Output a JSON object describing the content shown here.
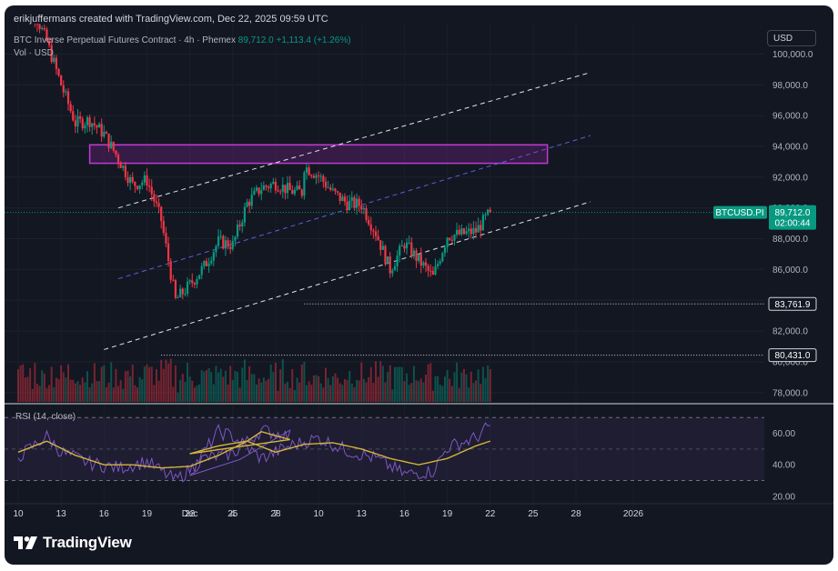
{
  "header": {
    "credit": "erikjuffermans created with TradingView.com, Dec 22, 2025 09:59 UTC",
    "symbol_desc": "BTC Inverse Perpetual Futures Contract · 4h · Phemex",
    "price": "89,712.0",
    "change": "+1,113.4 (+1.26%)",
    "vol_label": "Vol · USD",
    "currency": "USD"
  },
  "brand": {
    "name": "TradingView",
    "logo_icon": "tradingview-logo-icon"
  },
  "rsi_label": "RSI (14, close)",
  "price_tag": {
    "symbol": "BTCUSD.PI",
    "price": "89,712.0",
    "countdown": "02:00:44"
  },
  "level_labels": [
    "83,761.9",
    "80,431.0"
  ],
  "colors": {
    "background": "#131722",
    "up": "#089981",
    "down": "#f23645",
    "zone": "#9c27b0",
    "rsi_line": "#7e57c2",
    "rsi_ma": "#d4b53a"
  },
  "chart_data": [
    {
      "type": "candlestick",
      "title": "BTC Inverse Perpetual Futures Contract",
      "timeframe": "4h",
      "x_ticks": [
        "10",
        "13",
        "16",
        "19",
        "22",
        "25",
        "28",
        "Dec",
        "4",
        "7",
        "10",
        "13",
        "16",
        "19",
        "22",
        "25",
        "28",
        "2026"
      ],
      "y_ticks": [
        "100,000.0",
        "98,000.0",
        "96,000.0",
        "94,000.0",
        "92,000.0",
        "90,000.0",
        "88,000.0",
        "86,000.0",
        "84,000.0",
        "82,000.0",
        "80,000.0",
        "78,000.0"
      ],
      "ylim": [
        77400,
        101500
      ],
      "closes": [
        {
          "date": "Nov 10",
          "close": 105500
        },
        {
          "date": "Nov 11",
          "close": 103000
        },
        {
          "date": "Nov 12",
          "close": 100800
        },
        {
          "date": "Nov 13",
          "close": 98000
        },
        {
          "date": "Nov 14",
          "close": 95500
        },
        {
          "date": "Nov 15",
          "close": 95700
        },
        {
          "date": "Nov 16",
          "close": 94800
        },
        {
          "date": "Nov 17",
          "close": 93200
        },
        {
          "date": "Nov 18",
          "close": 91500
        },
        {
          "date": "Nov 19",
          "close": 91800
        },
        {
          "date": "Nov 20",
          "close": 89200
        },
        {
          "date": "Nov 21",
          "close": 84000
        },
        {
          "date": "Nov 22",
          "close": 85000
        },
        {
          "date": "Nov 23",
          "close": 86200
        },
        {
          "date": "Nov 24",
          "close": 87800
        },
        {
          "date": "Nov 25",
          "close": 87600
        },
        {
          "date": "Nov 26",
          "close": 90300
        },
        {
          "date": "Nov 27",
          "close": 91300
        },
        {
          "date": "Nov 28",
          "close": 91600
        },
        {
          "date": "Nov 29",
          "close": 91100
        },
        {
          "date": "Nov 30",
          "close": 91000
        },
        {
          "date": "Dec 1",
          "close": 86400
        },
        {
          "date": "Dec 2",
          "close": 91400
        },
        {
          "date": "Dec 3",
          "close": 93300
        },
        {
          "date": "Dec 4",
          "close": 92800
        },
        {
          "date": "Dec 5",
          "close": 89300
        },
        {
          "date": "Dec 6",
          "close": 89500
        },
        {
          "date": "Dec 7",
          "close": 89700
        },
        {
          "date": "Dec 8",
          "close": 90900
        },
        {
          "date": "Dec 9",
          "close": 92700
        },
        {
          "date": "Dec 10",
          "close": 92100
        },
        {
          "date": "Dec 11",
          "close": 91000
        },
        {
          "date": "Dec 12",
          "close": 90300
        },
        {
          "date": "Dec 13",
          "close": 90200
        },
        {
          "date": "Dec 14",
          "close": 88400
        },
        {
          "date": "Dec 15",
          "close": 86000
        },
        {
          "date": "Dec 16",
          "close": 87700
        },
        {
          "date": "Dec 17",
          "close": 86600
        },
        {
          "date": "Dec 18",
          "close": 85500
        },
        {
          "date": "Dec 19",
          "close": 88200
        },
        {
          "date": "Dec 20",
          "close": 88300
        },
        {
          "date": "Dec 21",
          "close": 88500
        },
        {
          "date": "Dec 22",
          "close": 89712
        }
      ],
      "resistance_zone": [
        92900,
        94100
      ],
      "horizontal_levels": [
        83761.9,
        80431.0
      ],
      "last_price": 89712.0
    },
    {
      "type": "line",
      "title": "RSI (14, close)",
      "y_ticks": [
        "60.00",
        "40.00",
        "20.00"
      ],
      "ylim": [
        17,
        73
      ],
      "bands": [
        70,
        50,
        30
      ],
      "series": [
        {
          "name": "RSI",
          "color": "#7e57c2",
          "values": [
            {
              "date": "Nov 10",
              "value": 45
            },
            {
              "date": "Nov 12",
              "value": 58
            },
            {
              "date": "Nov 13",
              "value": 48
            },
            {
              "date": "Nov 15",
              "value": 41
            },
            {
              "date": "Nov 17",
              "value": 38
            },
            {
              "date": "Nov 19",
              "value": 42
            },
            {
              "date": "Nov 21",
              "value": 30
            },
            {
              "date": "Nov 23",
              "value": 44
            },
            {
              "date": "Nov 25",
              "value": 47
            },
            {
              "date": "Nov 27",
              "value": 62
            },
            {
              "date": "Nov 29",
              "value": 58
            },
            {
              "date": "Dec 1",
              "value": 35
            },
            {
              "date": "Dec 3",
              "value": 61
            },
            {
              "date": "Dec 4",
              "value": 58
            },
            {
              "date": "Dec 6",
              "value": 44
            },
            {
              "date": "Dec 8",
              "value": 52
            },
            {
              "date": "Dec 10",
              "value": 57
            },
            {
              "date": "Dec 12",
              "value": 49
            },
            {
              "date": "Dec 14",
              "value": 44
            },
            {
              "date": "Dec 16",
              "value": 34
            },
            {
              "date": "Dec 18",
              "value": 36
            },
            {
              "date": "Dec 19",
              "value": 51
            },
            {
              "date": "Dec 21",
              "value": 57
            },
            {
              "date": "Dec 22",
              "value": 65
            }
          ]
        },
        {
          "name": "RSI-based MA",
          "color": "#d4b53a",
          "values": [
            {
              "date": "Nov 10",
              "value": 48
            },
            {
              "date": "Nov 12",
              "value": 55
            },
            {
              "date": "Nov 14",
              "value": 46
            },
            {
              "date": "Nov 16",
              "value": 40
            },
            {
              "date": "Nov 18",
              "value": 40
            },
            {
              "date": "Nov 20",
              "value": 38
            },
            {
              "date": "Nov 22",
              "value": 39
            },
            {
              "date": "Nov 24",
              "value": 46
            },
            {
              "date": "Nov 26",
              "value": 55
            },
            {
              "date": "Nov 27",
              "value": 61
            },
            {
              "date": "Nov 29",
              "value": 56
            },
            {
              "date": "Dec 1",
              "value": 47
            },
            {
              "date": "Dec 3",
              "value": 52
            },
            {
              "date": "Dec 5",
              "value": 55
            },
            {
              "date": "Dec 7",
              "value": 48
            },
            {
              "date": "Dec 9",
              "value": 53
            },
            {
              "date": "Dec 11",
              "value": 54
            },
            {
              "date": "Dec 13",
              "value": 50
            },
            {
              "date": "Dec 15",
              "value": 44
            },
            {
              "date": "Dec 17",
              "value": 40
            },
            {
              "date": "Dec 19",
              "value": 44
            },
            {
              "date": "Dec 21",
              "value": 52
            },
            {
              "date": "Dec 22",
              "value": 55
            }
          ]
        }
      ]
    }
  ]
}
